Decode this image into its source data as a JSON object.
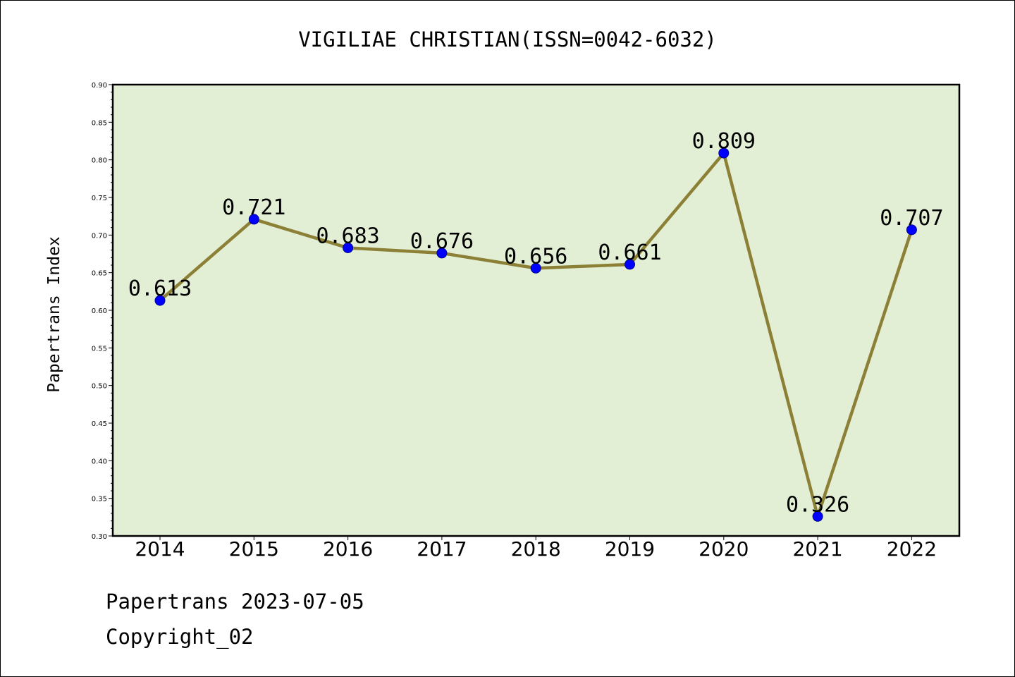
{
  "chart_data": {
    "type": "line",
    "title": "VIGILIAE CHRISTIAN(ISSN=0042-6032)",
    "xlabel": "",
    "ylabel": "Papertrans Index",
    "categories": [
      "2014",
      "2015",
      "2016",
      "2017",
      "2018",
      "2019",
      "2020",
      "2021",
      "2022"
    ],
    "series": [
      {
        "values": [
          0.613,
          0.721,
          0.683,
          0.676,
          0.656,
          0.661,
          0.809,
          0.326,
          0.707
        ]
      }
    ],
    "data_labels": [
      "0.613",
      "0.721",
      "0.683",
      "0.676",
      "0.656",
      "0.661",
      "0.809",
      "0.326",
      "0.707"
    ],
    "ylim": [
      0.3,
      0.9
    ],
    "yticks": [
      "0.30",
      "0.35",
      "0.40",
      "0.45",
      "0.50",
      "0.55",
      "0.60",
      "0.65",
      "0.70",
      "0.75",
      "0.80",
      "0.85",
      "0.90"
    ],
    "grid": false,
    "colors": {
      "plot_background": "#e2efd5",
      "line": "#8b8035",
      "marker": "#0000ff"
    }
  },
  "footer": {
    "line1": "Papertrans 2023-07-05",
    "line2": "Copyright_02"
  }
}
